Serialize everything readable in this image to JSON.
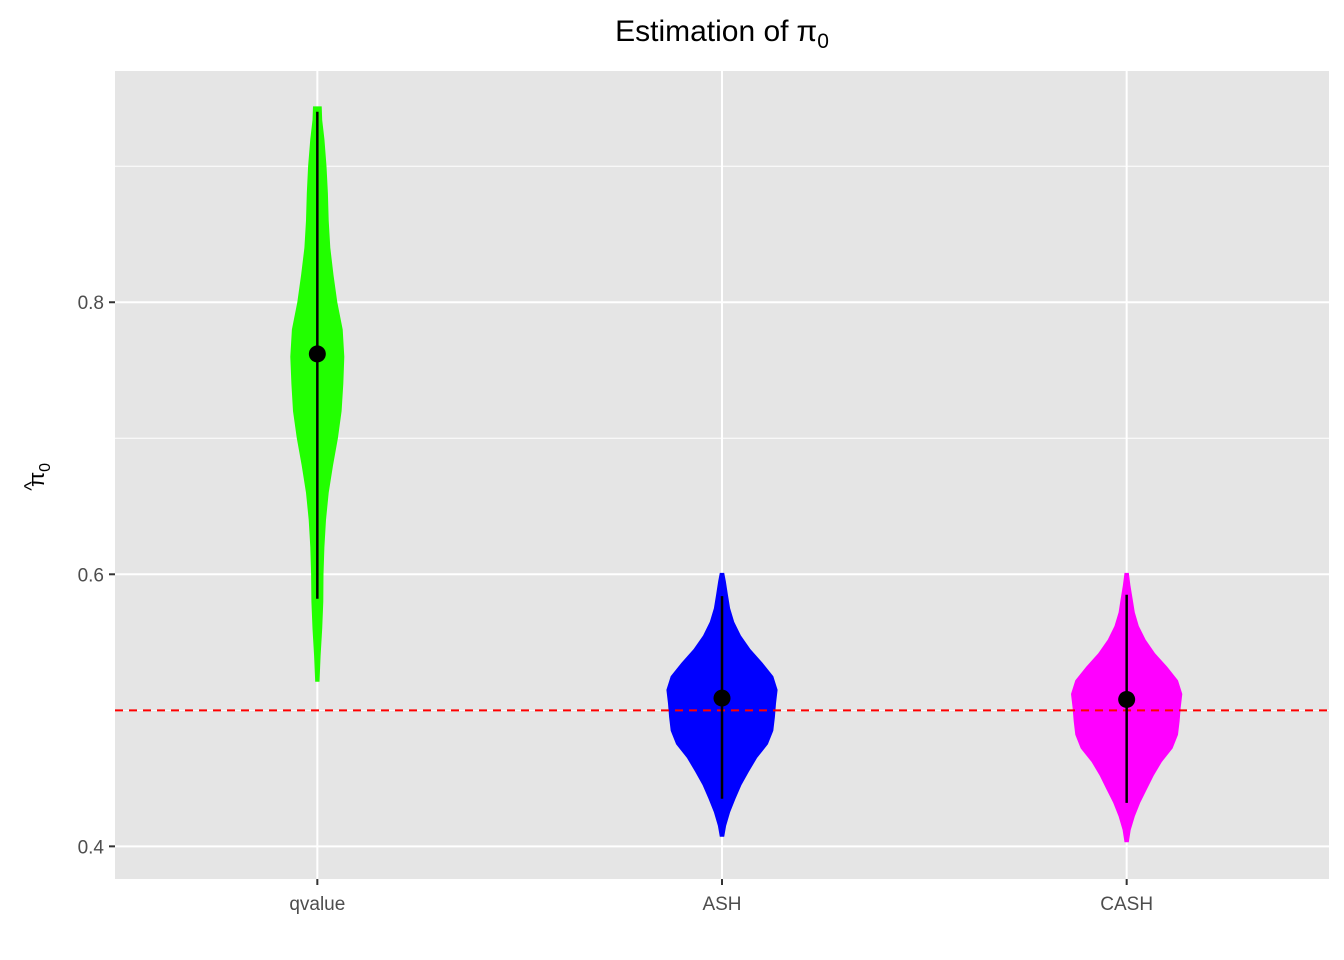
{
  "chart_data": {
    "type": "violin",
    "title": "Estimation of",
    "title_symbol": "π",
    "title_subscript": "0",
    "ylabel_hat": "^",
    "ylabel_symbol": "π",
    "ylabel_subscript": "0",
    "xlabel": "",
    "categories": [
      "qvalue",
      "ASH",
      "CASH"
    ],
    "colors": [
      "#22ff00",
      "#0000ff",
      "#ff00ff"
    ],
    "yticks": [
      "0.4",
      "0.6",
      "0.8"
    ],
    "ylim": [
      0.376,
      0.97
    ],
    "grid": true,
    "panel_background": "#e5e5e5",
    "reference_line": {
      "y": 0.5,
      "color": "#ff0000",
      "style": "dashed"
    },
    "summary": [
      {
        "category": "qvalue",
        "point": 0.762,
        "low": 0.582,
        "high": 0.94
      },
      {
        "category": "ASH",
        "point": 0.509,
        "low": 0.435,
        "high": 0.584
      },
      {
        "category": "CASH",
        "point": 0.508,
        "low": 0.432,
        "high": 0.585
      }
    ],
    "violins": [
      {
        "category": "qvalue",
        "profile": [
          [
            0.521,
            0.008
          ],
          [
            0.54,
            0.012
          ],
          [
            0.56,
            0.018
          ],
          [
            0.58,
            0.022
          ],
          [
            0.6,
            0.023
          ],
          [
            0.62,
            0.026
          ],
          [
            0.64,
            0.032
          ],
          [
            0.66,
            0.042
          ],
          [
            0.68,
            0.058
          ],
          [
            0.7,
            0.076
          ],
          [
            0.72,
            0.09
          ],
          [
            0.74,
            0.096
          ],
          [
            0.76,
            0.1
          ],
          [
            0.78,
            0.094
          ],
          [
            0.8,
            0.074
          ],
          [
            0.82,
            0.06
          ],
          [
            0.84,
            0.048
          ],
          [
            0.86,
            0.042
          ],
          [
            0.88,
            0.039
          ],
          [
            0.9,
            0.034
          ],
          [
            0.92,
            0.026
          ],
          [
            0.934,
            0.018
          ],
          [
            0.944,
            0.016
          ]
        ]
      },
      {
        "category": "ASH",
        "profile": [
          [
            0.407,
            0.008
          ],
          [
            0.415,
            0.015
          ],
          [
            0.425,
            0.03
          ],
          [
            0.435,
            0.05
          ],
          [
            0.445,
            0.072
          ],
          [
            0.455,
            0.1
          ],
          [
            0.465,
            0.13
          ],
          [
            0.475,
            0.17
          ],
          [
            0.485,
            0.19
          ],
          [
            0.495,
            0.196
          ],
          [
            0.505,
            0.2
          ],
          [
            0.515,
            0.206
          ],
          [
            0.525,
            0.19
          ],
          [
            0.535,
            0.15
          ],
          [
            0.545,
            0.105
          ],
          [
            0.555,
            0.07
          ],
          [
            0.565,
            0.045
          ],
          [
            0.575,
            0.03
          ],
          [
            0.585,
            0.022
          ],
          [
            0.595,
            0.014
          ],
          [
            0.601,
            0.008
          ]
        ]
      },
      {
        "category": "CASH",
        "profile": [
          [
            0.403,
            0.008
          ],
          [
            0.412,
            0.015
          ],
          [
            0.422,
            0.03
          ],
          [
            0.432,
            0.05
          ],
          [
            0.442,
            0.075
          ],
          [
            0.452,
            0.1
          ],
          [
            0.462,
            0.13
          ],
          [
            0.472,
            0.17
          ],
          [
            0.482,
            0.19
          ],
          [
            0.492,
            0.196
          ],
          [
            0.502,
            0.2
          ],
          [
            0.512,
            0.206
          ],
          [
            0.522,
            0.19
          ],
          [
            0.532,
            0.15
          ],
          [
            0.542,
            0.105
          ],
          [
            0.552,
            0.07
          ],
          [
            0.562,
            0.045
          ],
          [
            0.572,
            0.03
          ],
          [
            0.582,
            0.022
          ],
          [
            0.592,
            0.014
          ],
          [
            0.601,
            0.008
          ]
        ]
      }
    ]
  }
}
